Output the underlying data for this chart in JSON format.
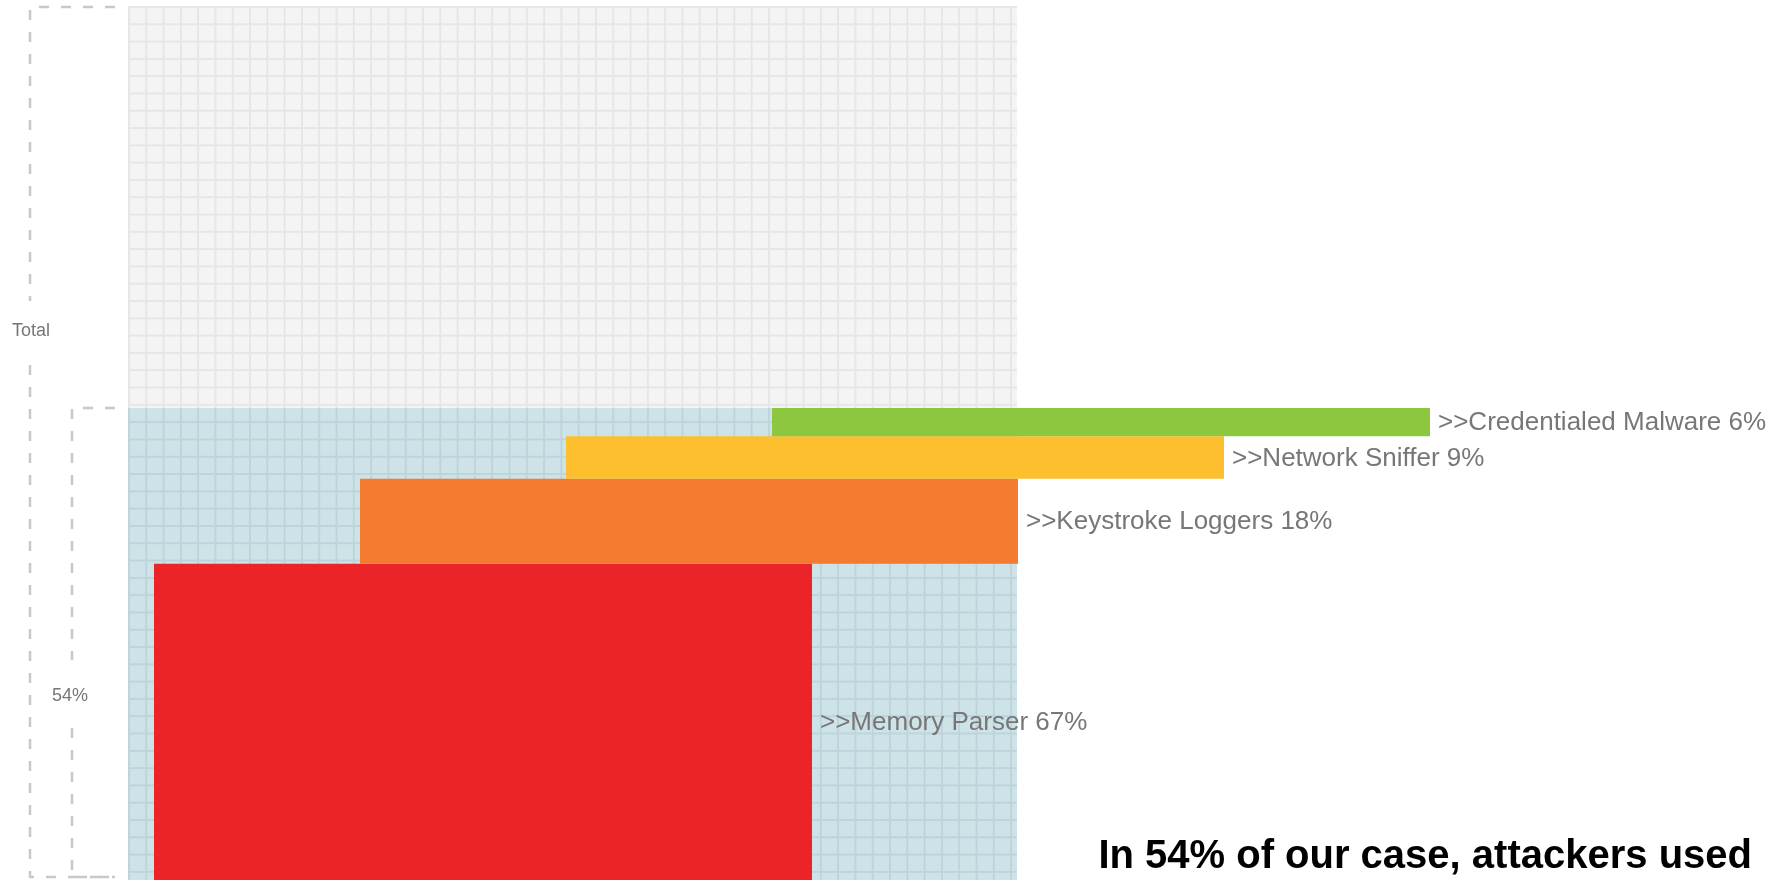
{
  "chart_data": {
    "type": "other",
    "categories": [
      ">>Credentialed Malware",
      ">>Network Sniffer",
      ">>Keystroke Loggers",
      ">>Memory Parser"
    ],
    "values": [
      6,
      9,
      18,
      67
    ],
    "value_labels": [
      "6%",
      "9%",
      "18%",
      "67%"
    ],
    "colors": [
      "#8dc63f",
      "#fdbf2d",
      "#f37a2e",
      "#ea2428"
    ],
    "annotations": [
      "Total",
      "54%",
      "In 54% of our case, attackers used"
    ]
  }
}
